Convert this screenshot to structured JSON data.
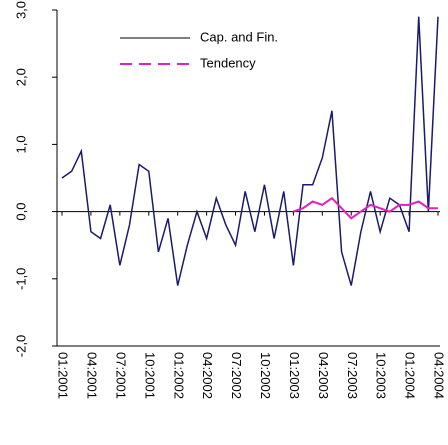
{
  "chart_data": {
    "type": "line",
    "categories": [
      "01:2001",
      null,
      null,
      "04:2001",
      null,
      null,
      "07:2001",
      null,
      null,
      "10:2001",
      null,
      null,
      "01:2002",
      null,
      null,
      "04:2002",
      null,
      null,
      "07:2002",
      null,
      null,
      "10:2002",
      null,
      null,
      "01:2003",
      null,
      null,
      "04:2003",
      null,
      null,
      "07:2003",
      null,
      null,
      "10:2003",
      null,
      null,
      "01:2004",
      null,
      null,
      "04:2004"
    ],
    "series": [
      {
        "name": "Cap. and Fin.",
        "color": "#1a1a6e",
        "dash": false,
        "values": [
          0.5,
          0.6,
          0.9,
          -0.3,
          -0.4,
          0.1,
          -0.8,
          -0.2,
          0.7,
          0.6,
          -0.6,
          -0.1,
          -1.1,
          -0.5,
          0.0,
          -0.4,
          0.2,
          -0.2,
          -0.5,
          0.3,
          -0.3,
          0.4,
          -0.4,
          0.3,
          -0.8,
          0.4,
          0.4,
          0.8,
          1.5,
          -0.6,
          -1.1,
          -0.3,
          0.3,
          -0.3,
          0.2,
          0.1,
          -0.3,
          2.9,
          0.0,
          2.9
        ]
      },
      {
        "name": "Tendency",
        "color": "#e020c0",
        "dash": true,
        "values": [
          null,
          null,
          null,
          null,
          null,
          null,
          null,
          null,
          null,
          null,
          null,
          null,
          null,
          null,
          null,
          null,
          null,
          null,
          null,
          null,
          null,
          null,
          null,
          null,
          0.0,
          0.05,
          0.15,
          0.1,
          0.2,
          0.05,
          -0.1,
          0.0,
          0.1,
          0.05,
          0.0,
          0.1,
          0.1,
          0.15,
          0.05,
          0.05
        ]
      }
    ],
    "ylim": [
      -2,
      3
    ],
    "yticks": [
      {
        "value": 3,
        "label": "3,0"
      },
      {
        "value": 2,
        "label": "2,0"
      },
      {
        "value": 1,
        "label": "1,0"
      },
      {
        "value": 0,
        "label": "0,0"
      },
      {
        "value": -1,
        "label": "-1,0"
      },
      {
        "value": -2,
        "label": "-2,0"
      }
    ]
  }
}
